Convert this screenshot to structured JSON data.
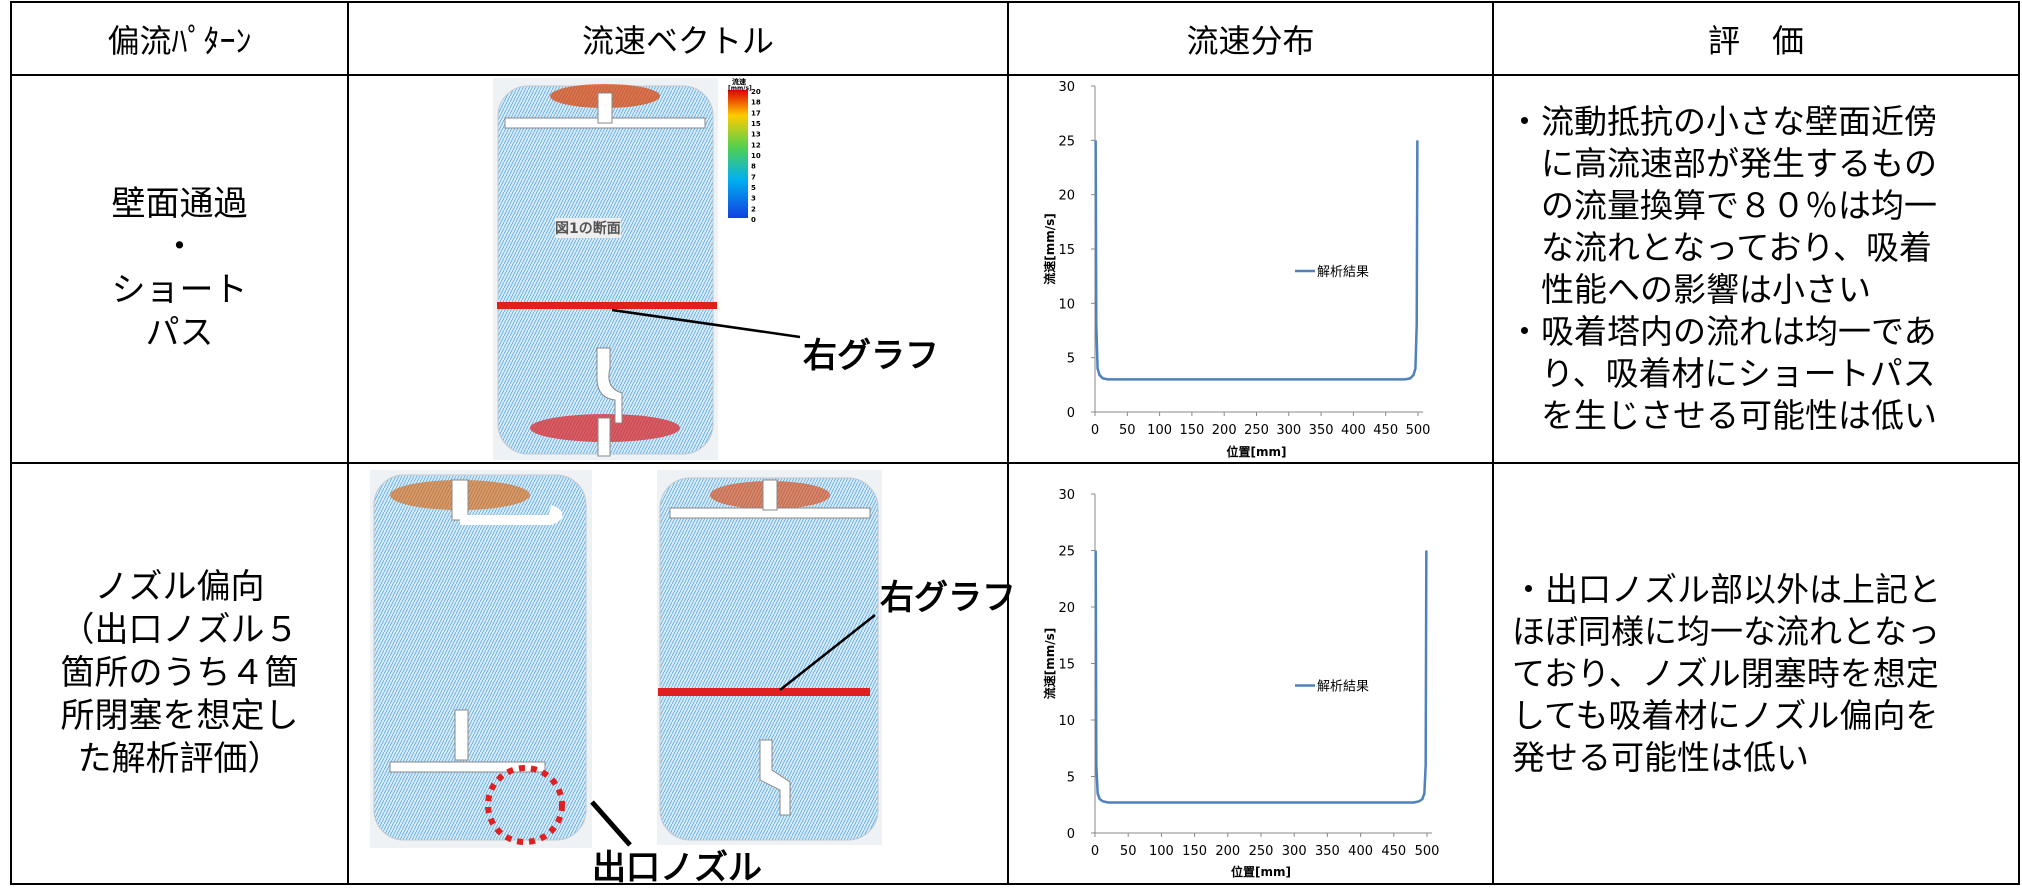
{
  "table": {
    "headers": [
      "偏流ﾊﾟﾀｰﾝ",
      "流速ベクトル",
      "流速分布",
      "評　価"
    ],
    "rows": [
      {
        "pattern": [
          "壁面通過",
          "・",
          "ショート",
          "パス"
        ],
        "vector": {
          "colorbar_title": "流速",
          "colorbar_unit": "[mm/s]",
          "colorbar_ticks": [
            "20",
            "18",
            "17",
            "15",
            "13",
            "12",
            "10",
            "8",
            "7",
            "5",
            "3",
            "2",
            "0"
          ],
          "section_label": "図1の断面",
          "graph_label": "右グラフ"
        },
        "evaluation": [
          "・流動抵抗の小さな壁面近傍",
          "に高流速部が発生するもの",
          "の流量換算で８０％は均一",
          "な流れとなっており、吸着",
          "性能への影響は小さい",
          "・吸着塔内の流れは均一であ",
          "り、吸着材にショートパス",
          "を生じさせる可能性は低い"
        ]
      },
      {
        "pattern": [
          "ノズル偏向",
          "（出口ノズル５",
          "箇所のうち４箇",
          "所閉塞を想定し",
          "た解析評価）"
        ],
        "vector": {
          "graph_label": "右グラフ",
          "nozzle_label": "出口ノズル"
        },
        "evaluation": [
          "・出口ノズル部以外は上記と",
          "ほぼ同様に均一な流れとなっ",
          "ており、ノズル閉塞時を想定",
          "しても吸着材にノズル偏向を",
          "発せる可能性は低い"
        ]
      }
    ]
  },
  "chart_data": [
    {
      "type": "line",
      "xlabel": "位置[mm]",
      "ylabel": "流速[mm/s]",
      "x": [
        1,
        2,
        4,
        7,
        12,
        20,
        100,
        200,
        300,
        400,
        480,
        488,
        493,
        496,
        498,
        499
      ],
      "series": [
        {
          "name": "解析結果",
          "color": "#4f81bd",
          "values": [
            25,
            8,
            4,
            3.4,
            3.1,
            3,
            3,
            3,
            3,
            3,
            3,
            3.1,
            3.4,
            4,
            8,
            25
          ]
        }
      ],
      "xlim": [
        0,
        500
      ],
      "ylim": [
        0,
        30
      ],
      "xticks": [
        0,
        50,
        100,
        150,
        200,
        250,
        300,
        350,
        400,
        450,
        500
      ],
      "yticks": [
        0,
        5,
        10,
        15,
        20,
        25,
        30
      ]
    },
    {
      "type": "line",
      "xlabel": "位置[mm]",
      "ylabel": "流速[mm/s]",
      "x": [
        1,
        2,
        4,
        7,
        12,
        20,
        100,
        200,
        300,
        400,
        480,
        488,
        493,
        496,
        498,
        499
      ],
      "series": [
        {
          "name": "解析結果",
          "color": "#4f81bd",
          "values": [
            25,
            6,
            3.5,
            3,
            2.8,
            2.7,
            2.7,
            2.7,
            2.7,
            2.7,
            2.7,
            2.8,
            3,
            3.5,
            6,
            25
          ]
        }
      ],
      "xlim": [
        0,
        500
      ],
      "ylim": [
        0,
        30
      ],
      "xticks": [
        0,
        50,
        100,
        150,
        200,
        250,
        300,
        350,
        400,
        450,
        500
      ],
      "yticks": [
        0,
        5,
        10,
        15,
        20,
        25,
        30
      ]
    }
  ]
}
